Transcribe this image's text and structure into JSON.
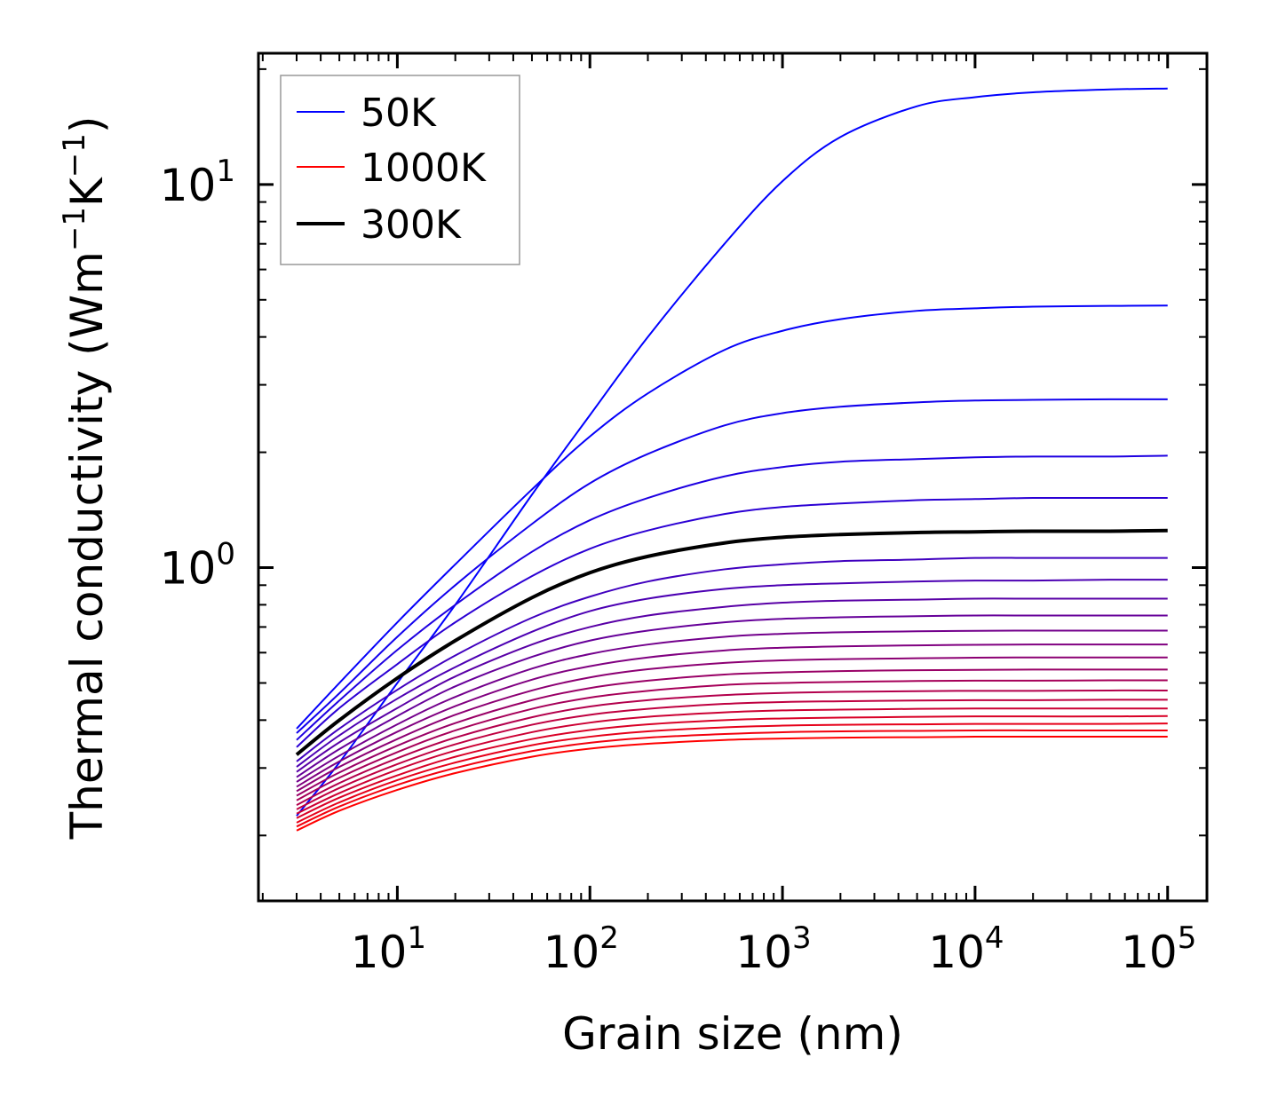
{
  "chart_data": {
    "type": "line",
    "title": "",
    "xlabel": "Grain size (nm)",
    "ylabel": "Thermal conductivity (Wm",
    "ylabel_unit_parts": [
      "−1",
      "K",
      "−1",
      ")"
    ],
    "xscale": "log",
    "yscale": "log",
    "xlim": [
      1.9,
      160000
    ],
    "ylim": [
      0.135,
      22
    ],
    "x_ticks": [
      {
        "base": "10",
        "exp": "1",
        "value": 10
      },
      {
        "base": "10",
        "exp": "2",
        "value": 100
      },
      {
        "base": "10",
        "exp": "3",
        "value": 1000
      },
      {
        "base": "10",
        "exp": "4",
        "value": 10000
      },
      {
        "base": "10",
        "exp": "5",
        "value": 100000
      }
    ],
    "y_ticks": [
      {
        "base": "10",
        "exp": "0",
        "value": 1
      },
      {
        "base": "10",
        "exp": "1",
        "value": 10
      }
    ],
    "x_sample": [
      3,
      5,
      10,
      20,
      50,
      100,
      200,
      500,
      1000,
      2000,
      5000,
      10000,
      20000,
      50000,
      100000
    ],
    "series": [
      {
        "name": "50K",
        "color": "#0000ff",
        "values": [
          0.225,
          0.31,
          0.5,
          0.8,
          1.55,
          2.5,
          4.0,
          7.0,
          10.2,
          13.3,
          16.0,
          16.9,
          17.4,
          17.7,
          17.8
        ]
      },
      {
        "name": "",
        "color": "#0500fa",
        "values": [
          0.38,
          0.5,
          0.72,
          1.02,
          1.6,
          2.2,
          2.85,
          3.7,
          4.15,
          4.45,
          4.68,
          4.75,
          4.8,
          4.82,
          4.83
        ]
      },
      {
        "name": "",
        "color": "#1100ee",
        "values": [
          0.37,
          0.47,
          0.66,
          0.9,
          1.3,
          1.66,
          1.98,
          2.35,
          2.53,
          2.63,
          2.7,
          2.73,
          2.74,
          2.75,
          2.75
        ]
      },
      {
        "name": "",
        "color": "#1e00e1",
        "values": [
          0.355,
          0.45,
          0.61,
          0.8,
          1.1,
          1.33,
          1.52,
          1.73,
          1.83,
          1.89,
          1.92,
          1.94,
          1.95,
          1.95,
          1.96
        ]
      },
      {
        "name": "",
        "color": "#2b00d4",
        "values": [
          0.34,
          0.43,
          0.56,
          0.72,
          0.95,
          1.12,
          1.25,
          1.38,
          1.44,
          1.47,
          1.5,
          1.51,
          1.52,
          1.52,
          1.52
        ]
      },
      {
        "name": "",
        "color": "#4000bf",
        "values": [
          0.312,
          0.38,
          0.48,
          0.59,
          0.74,
          0.84,
          0.92,
          0.99,
          1.02,
          1.04,
          1.05,
          1.06,
          1.06,
          1.06,
          1.06
        ]
      },
      {
        "name": "",
        "color": "#4c00b3",
        "values": [
          0.302,
          0.365,
          0.455,
          0.55,
          0.68,
          0.77,
          0.83,
          0.88,
          0.9,
          0.91,
          0.92,
          0.925,
          0.925,
          0.93,
          0.93
        ]
      },
      {
        "name": "",
        "color": "#5900a6",
        "values": [
          0.293,
          0.35,
          0.43,
          0.52,
          0.63,
          0.7,
          0.75,
          0.79,
          0.81,
          0.82,
          0.825,
          0.83,
          0.83,
          0.83,
          0.83
        ]
      },
      {
        "name": "",
        "color": "#660099",
        "values": [
          0.284,
          0.336,
          0.41,
          0.49,
          0.585,
          0.645,
          0.685,
          0.72,
          0.735,
          0.742,
          0.747,
          0.75,
          0.75,
          0.75,
          0.75
        ]
      },
      {
        "name": "",
        "color": "#73008c",
        "values": [
          0.276,
          0.323,
          0.39,
          0.46,
          0.545,
          0.595,
          0.63,
          0.66,
          0.672,
          0.678,
          0.682,
          0.684,
          0.685,
          0.685,
          0.685
        ]
      },
      {
        "name": "",
        "color": "#800080",
        "values": [
          0.268,
          0.312,
          0.373,
          0.435,
          0.51,
          0.553,
          0.583,
          0.608,
          0.618,
          0.623,
          0.627,
          0.629,
          0.63,
          0.63,
          0.63
        ]
      },
      {
        "name": "",
        "color": "#8c0073",
        "values": [
          0.261,
          0.302,
          0.357,
          0.413,
          0.478,
          0.517,
          0.543,
          0.564,
          0.573,
          0.577,
          0.58,
          0.582,
          0.583,
          0.583,
          0.583
        ]
      },
      {
        "name": "",
        "color": "#990066",
        "values": [
          0.254,
          0.292,
          0.343,
          0.393,
          0.451,
          0.485,
          0.507,
          0.526,
          0.533,
          0.537,
          0.54,
          0.541,
          0.542,
          0.542,
          0.542
        ]
      },
      {
        "name": "",
        "color": "#a60059",
        "values": [
          0.247,
          0.283,
          0.33,
          0.376,
          0.428,
          0.458,
          0.477,
          0.494,
          0.5,
          0.503,
          0.506,
          0.507,
          0.507,
          0.508,
          0.508
        ]
      },
      {
        "name": "",
        "color": "#b3004c",
        "values": [
          0.24,
          0.274,
          0.318,
          0.36,
          0.407,
          0.434,
          0.451,
          0.465,
          0.471,
          0.474,
          0.476,
          0.477,
          0.477,
          0.478,
          0.478
        ]
      },
      {
        "name": "",
        "color": "#bf0040",
        "values": [
          0.234,
          0.266,
          0.307,
          0.346,
          0.389,
          0.413,
          0.428,
          0.441,
          0.446,
          0.448,
          0.45,
          0.451,
          0.451,
          0.452,
          0.452
        ]
      },
      {
        "name": "",
        "color": "#cc0033",
        "values": [
          0.228,
          0.258,
          0.297,
          0.333,
          0.372,
          0.394,
          0.408,
          0.419,
          0.424,
          0.426,
          0.428,
          0.429,
          0.429,
          0.429,
          0.429
        ]
      },
      {
        "name": "",
        "color": "#d90026",
        "values": [
          0.222,
          0.251,
          0.287,
          0.321,
          0.357,
          0.377,
          0.39,
          0.4,
          0.404,
          0.406,
          0.408,
          0.409,
          0.409,
          0.409,
          0.41
        ]
      },
      {
        "name": "",
        "color": "#e60019",
        "values": [
          0.216,
          0.244,
          0.279,
          0.31,
          0.344,
          0.362,
          0.374,
          0.383,
          0.387,
          0.389,
          0.39,
          0.391,
          0.391,
          0.391,
          0.392
        ]
      },
      {
        "name": "",
        "color": "#f2000d",
        "values": [
          0.211,
          0.238,
          0.271,
          0.3,
          0.332,
          0.349,
          0.36,
          0.368,
          0.372,
          0.374,
          0.375,
          0.376,
          0.376,
          0.376,
          0.376
        ]
      },
      {
        "name": "1000K",
        "color": "#ff0000",
        "values": [
          0.206,
          0.232,
          0.263,
          0.291,
          0.321,
          0.337,
          0.347,
          0.355,
          0.358,
          0.36,
          0.361,
          0.362,
          0.362,
          0.362,
          0.362
        ]
      },
      {
        "name": "300K",
        "color": "#000000",
        "highlight": true,
        "values": [
          0.325,
          0.4,
          0.515,
          0.645,
          0.835,
          0.97,
          1.07,
          1.16,
          1.2,
          1.22,
          1.235,
          1.24,
          1.245,
          1.245,
          1.25
        ]
      }
    ],
    "legend": {
      "location": "top-left",
      "entries": [
        {
          "label": "50K",
          "color": "#0000ff",
          "weight": "thin"
        },
        {
          "label": "1000K",
          "color": "#ff0000",
          "weight": "thin"
        },
        {
          "label": "300K",
          "color": "#000000",
          "weight": "thick"
        }
      ]
    }
  }
}
